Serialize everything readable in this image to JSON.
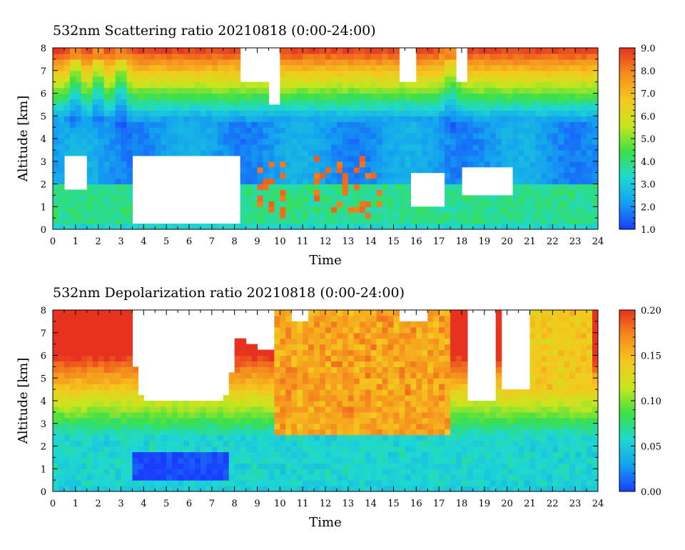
{
  "chart_data": [
    {
      "type": "heatmap",
      "title": "532nm Scattering ratio  20210818 (0:00-24:00)",
      "xlabel": "Time",
      "ylabel": "Altitude [km]",
      "xlim": [
        0,
        24
      ],
      "ylim": [
        0,
        8
      ],
      "x_ticks": [
        "0",
        "1",
        "2",
        "3",
        "4",
        "5",
        "6",
        "7",
        "8",
        "9",
        "10",
        "11",
        "12",
        "13",
        "14",
        "15",
        "16",
        "17",
        "18",
        "19",
        "20",
        "21",
        "22",
        "23",
        "24"
      ],
      "y_ticks": [
        "0",
        "1",
        "2",
        "3",
        "4",
        "5",
        "6",
        "7",
        "8"
      ],
      "colorbar": {
        "range": [
          1.0,
          9.0
        ],
        "ticks": [
          "1.0",
          "2.0",
          "3.0",
          "4.0",
          "5.0",
          "6.0",
          "7.0",
          "8.0",
          "9.0"
        ],
        "colormap": [
          "#1a3cff",
          "#14a0f0",
          "#1ed8d2",
          "#3ce046",
          "#c8e61e",
          "#f5c81e",
          "#f58c1e",
          "#e6321e"
        ]
      },
      "missing_color": "#ffffff"
    },
    {
      "type": "heatmap",
      "title": "532nm Depolarization ratio  20210818 (0:00-24:00)",
      "xlabel": "Time",
      "ylabel": "Altitude [km]",
      "xlim": [
        0,
        24
      ],
      "ylim": [
        0,
        8
      ],
      "x_ticks": [
        "0",
        "1",
        "2",
        "3",
        "4",
        "5",
        "6",
        "7",
        "8",
        "9",
        "10",
        "11",
        "12",
        "13",
        "14",
        "15",
        "16",
        "17",
        "18",
        "19",
        "20",
        "21",
        "22",
        "23",
        "24"
      ],
      "y_ticks": [
        "0",
        "1",
        "2",
        "3",
        "4",
        "5",
        "6",
        "7",
        "8"
      ],
      "colorbar": {
        "range": [
          0.0,
          0.2
        ],
        "ticks": [
          "0.00",
          "0.05",
          "0.10",
          "0.15",
          "0.20"
        ],
        "colormap": [
          "#1a3cff",
          "#14a0f0",
          "#1ed8d2",
          "#3ce046",
          "#c8e61e",
          "#f5c81e",
          "#f58c1e",
          "#e6321e"
        ]
      },
      "missing_color": "#ffffff"
    }
  ]
}
